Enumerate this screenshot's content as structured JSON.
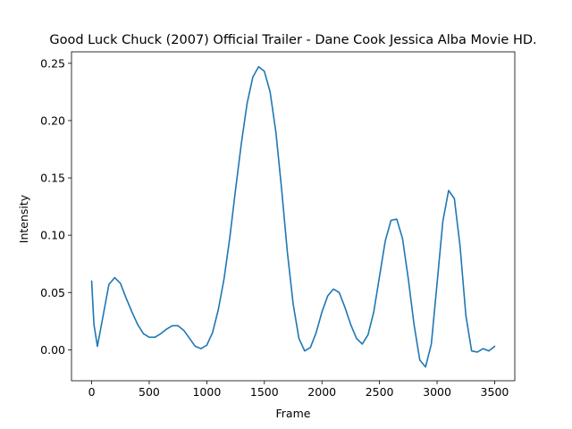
{
  "chart_data": {
    "type": "line",
    "title": "Good Luck Chuck (2007) Official Trailer - Dane Cook Jessica Alba Movie HD.",
    "xlabel": "Frame",
    "ylabel": "Intensity",
    "xlim": [
      -175,
      3675
    ],
    "ylim": [
      -0.027,
      0.26
    ],
    "grid": false,
    "series_color": "#1f77b4",
    "x_ticks": [
      0,
      500,
      1000,
      1500,
      2000,
      2500,
      3000,
      3500
    ],
    "x_tick_labels": [
      "0",
      "500",
      "1000",
      "1500",
      "2000",
      "2500",
      "3000",
      "3500"
    ],
    "y_ticks": [
      0.0,
      0.05,
      0.1,
      0.15,
      0.2,
      0.25
    ],
    "y_tick_labels": [
      "0.00",
      "0.05",
      "0.10",
      "0.15",
      "0.20",
      "0.25"
    ],
    "series": [
      {
        "x": [
          0,
          20,
          50,
          100,
          150,
          200,
          250,
          300,
          350,
          400,
          450,
          500,
          550,
          600,
          650,
          700,
          750,
          800,
          850,
          900,
          950,
          1000,
          1050,
          1100,
          1150,
          1200,
          1250,
          1300,
          1350,
          1400,
          1450,
          1500,
          1550,
          1600,
          1650,
          1700,
          1750,
          1800,
          1850,
          1900,
          1950,
          2000,
          2050,
          2100,
          2150,
          2200,
          2250,
          2300,
          2350,
          2400,
          2450,
          2500,
          2550,
          2600,
          2650,
          2700,
          2750,
          2800,
          2850,
          2900,
          2950,
          3000,
          3050,
          3100,
          3150,
          3200,
          3250,
          3300,
          3350,
          3400,
          3450,
          3500
        ],
        "y": [
          0.06,
          0.022,
          0.003,
          0.03,
          0.057,
          0.063,
          0.058,
          0.045,
          0.033,
          0.022,
          0.014,
          0.011,
          0.011,
          0.014,
          0.018,
          0.021,
          0.021,
          0.017,
          0.01,
          0.003,
          0.001,
          0.004,
          0.015,
          0.035,
          0.062,
          0.098,
          0.14,
          0.18,
          0.215,
          0.238,
          0.247,
          0.243,
          0.225,
          0.19,
          0.14,
          0.085,
          0.04,
          0.01,
          -0.001,
          0.002,
          0.015,
          0.033,
          0.047,
          0.053,
          0.05,
          0.037,
          0.022,
          0.01,
          0.005,
          0.013,
          0.033,
          0.064,
          0.095,
          0.113,
          0.114,
          0.097,
          0.062,
          0.022,
          -0.009,
          -0.015,
          0.005,
          0.058,
          0.112,
          0.139,
          0.132,
          0.09,
          0.03,
          -0.001,
          -0.002,
          0.001,
          -0.001,
          0.003
        ]
      }
    ]
  }
}
